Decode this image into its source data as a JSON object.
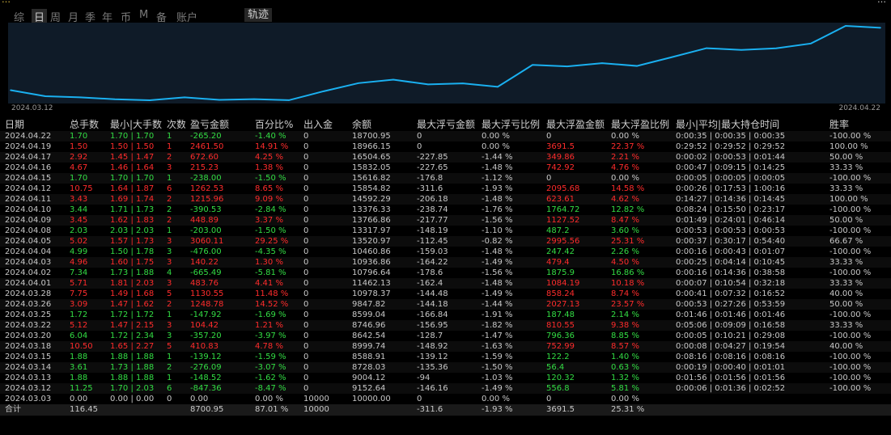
{
  "header": {
    "brand_left": "…",
    "brand_right": "…",
    "tabs": [
      {
        "label": "综",
        "active": false
      },
      {
        "label": "日",
        "active": true
      },
      {
        "label": "周",
        "active": false
      },
      {
        "label": "月",
        "active": false
      },
      {
        "label": "季",
        "active": false
      },
      {
        "label": "年",
        "active": false
      },
      {
        "label": "币",
        "active": false
      },
      {
        "label": "M",
        "active": false
      },
      {
        "label": "备",
        "active": false
      },
      {
        "label": "账户",
        "active": false
      }
    ],
    "trace_label": "轨迹"
  },
  "chart_data": {
    "type": "line",
    "x_start_label": "2024.03.12",
    "x_end_label": "2024.04.22",
    "x": [
      "2024.03.03",
      "2024.03.12",
      "2024.03.13",
      "2024.03.14",
      "2024.03.15",
      "2024.03.18",
      "2024.03.20",
      "2024.03.22",
      "2024.03.25",
      "2024.03.26",
      "2024.03.28",
      "2024.04.01",
      "2024.04.02",
      "2024.04.03",
      "2024.04.04",
      "2024.04.05",
      "2024.04.08",
      "2024.04.09",
      "2024.04.10",
      "2024.04.11",
      "2024.04.12",
      "2024.04.15",
      "2024.04.16",
      "2024.04.17",
      "2024.04.19",
      "2024.04.22"
    ],
    "values": [
      10000,
      9152.64,
      9004.12,
      8728.03,
      8588.91,
      8999.74,
      8642.54,
      8746.96,
      8599.04,
      9847.82,
      10978.37,
      11462.13,
      10796.64,
      10936.86,
      10460.86,
      13520.97,
      13317.97,
      13766.86,
      13376.33,
      14592.29,
      15854.82,
      15616.82,
      15832.05,
      16504.65,
      18966.15,
      18700.95
    ],
    "color": "#1ab0f0",
    "grid": false
  },
  "table": {
    "columns": [
      "日期",
      "总手数",
      "最小|大手数",
      "次数",
      "盈亏金额",
      "百分比%",
      "出入金",
      "余额",
      "最大浮亏金额",
      "最大浮亏比例",
      "最大浮盈金额",
      "最大浮盈比例",
      "最小|平均|最大持仓时间",
      "胜率"
    ],
    "rows": [
      {
        "date": "2024.04.22",
        "lots": "1.70",
        "minmax": "1.70 | 1.70",
        "count": "1",
        "pnl": "-265.20",
        "pct": "-1.40 %",
        "io": "0",
        "bal": "18700.95",
        "mfl": "0",
        "mflp": "0.00 %",
        "mfp": "0",
        "mfpp": "0.00 %",
        "hold": "0:00:35 | 0:00:35 | 0:00:35",
        "win": "-100.00 %",
        "c": "g"
      },
      {
        "date": "2024.04.19",
        "lots": "1.50",
        "minmax": "1.50 | 1.50",
        "count": "1",
        "pnl": "2461.50",
        "pct": "14.91 %",
        "io": "0",
        "bal": "18966.15",
        "mfl": "0",
        "mflp": "0.00 %",
        "mfp": "3691.5",
        "mfpp": "22.37 %",
        "hold": "0:29:52 | 0:29:52 | 0:29:52",
        "win": "100.00 %",
        "c": "r"
      },
      {
        "date": "2024.04.17",
        "lots": "2.92",
        "minmax": "1.45 | 1.47",
        "count": "2",
        "pnl": "672.60",
        "pct": "4.25 %",
        "io": "0",
        "bal": "16504.65",
        "mfl": "-227.85",
        "mflp": "-1.44 %",
        "mfp": "349.86",
        "mfpp": "2.21 %",
        "hold": "0:00:02 | 0:00:53 | 0:01:44",
        "win": "50.00 %",
        "c": "r"
      },
      {
        "date": "2024.04.16",
        "lots": "4.67",
        "minmax": "1.46 | 1.64",
        "count": "3",
        "pnl": "215.23",
        "pct": "1.38 %",
        "io": "0",
        "bal": "15832.05",
        "mfl": "-227.65",
        "mflp": "-1.48 %",
        "mfp": "742.92",
        "mfpp": "4.76 %",
        "hold": "0:00:47 | 0:09:15 | 0:14:25",
        "win": "33.33 %",
        "c": "r"
      },
      {
        "date": "2024.04.15",
        "lots": "1.70",
        "minmax": "1.70 | 1.70",
        "count": "1",
        "pnl": "-238.00",
        "pct": "-1.50 %",
        "io": "0",
        "bal": "15616.82",
        "mfl": "-176.8",
        "mflp": "-1.12 %",
        "mfp": "0",
        "mfpp": "0.00 %",
        "hold": "0:00:05 | 0:00:05 | 0:00:05",
        "win": "-100.00 %",
        "c": "g"
      },
      {
        "date": "2024.04.12",
        "lots": "10.75",
        "minmax": "1.64 | 1.87",
        "count": "6",
        "pnl": "1262.53",
        "pct": "8.65 %",
        "io": "0",
        "bal": "15854.82",
        "mfl": "-311.6",
        "mflp": "-1.93 %",
        "mfp": "2095.68",
        "mfpp": "14.58 %",
        "hold": "0:00:26 | 0:17:53 | 1:00:16",
        "win": "33.33 %",
        "c": "r"
      },
      {
        "date": "2024.04.11",
        "lots": "3.43",
        "minmax": "1.69 | 1.74",
        "count": "2",
        "pnl": "1215.96",
        "pct": "9.09 %",
        "io": "0",
        "bal": "14592.29",
        "mfl": "-206.18",
        "mflp": "-1.48 %",
        "mfp": "623.61",
        "mfpp": "4.62 %",
        "hold": "0:14:27 | 0:14:36 | 0:14:45",
        "win": "100.00 %",
        "c": "r"
      },
      {
        "date": "2024.04.10",
        "lots": "3.44",
        "minmax": "1.71 | 1.73",
        "count": "2",
        "pnl": "-390.53",
        "pct": "-2.84 %",
        "io": "0",
        "bal": "13376.33",
        "mfl": "-238.74",
        "mflp": "-1.76 %",
        "mfp": "1764.72",
        "mfpp": "12.82 %",
        "hold": "0:08:24 | 0:15:50 | 0:23:17",
        "win": "-100.00 %",
        "c": "g"
      },
      {
        "date": "2024.04.09",
        "lots": "3.45",
        "minmax": "1.62 | 1.83",
        "count": "2",
        "pnl": "448.89",
        "pct": "3.37 %",
        "io": "0",
        "bal": "13766.86",
        "mfl": "-217.77",
        "mflp": "-1.56 %",
        "mfp": "1127.52",
        "mfpp": "8.47 %",
        "hold": "0:01:49 | 0:24:01 | 0:46:14",
        "win": "50.00 %",
        "c": "r"
      },
      {
        "date": "2024.04.08",
        "lots": "2.03",
        "minmax": "2.03 | 2.03",
        "count": "1",
        "pnl": "-203.00",
        "pct": "-1.50 %",
        "io": "0",
        "bal": "13317.97",
        "mfl": "-148.19",
        "mflp": "-1.10 %",
        "mfp": "487.2",
        "mfpp": "3.60 %",
        "hold": "0:00:53 | 0:00:53 | 0:00:53",
        "win": "-100.00 %",
        "c": "g"
      },
      {
        "date": "2024.04.05",
        "lots": "5.02",
        "minmax": "1.57 | 1.73",
        "count": "3",
        "pnl": "3060.11",
        "pct": "29.25 %",
        "io": "0",
        "bal": "13520.97",
        "mfl": "-112.45",
        "mflp": "-0.82 %",
        "mfp": "2995.56",
        "mfpp": "25.31 %",
        "hold": "0:00:37 | 0:30:17 | 0:54:40",
        "win": "66.67 %",
        "c": "r"
      },
      {
        "date": "2024.04.04",
        "lots": "4.99",
        "minmax": "1.50 | 1.78",
        "count": "3",
        "pnl": "-476.00",
        "pct": "-4.35 %",
        "io": "0",
        "bal": "10460.86",
        "mfl": "-159.03",
        "mflp": "-1.48 %",
        "mfp": "247.42",
        "mfpp": "2.26 %",
        "hold": "0:00:16 | 0:00:43 | 0:01:07",
        "win": "-100.00 %",
        "c": "g"
      },
      {
        "date": "2024.04.03",
        "lots": "4.96",
        "minmax": "1.60 | 1.75",
        "count": "3",
        "pnl": "140.22",
        "pct": "1.30 %",
        "io": "0",
        "bal": "10936.86",
        "mfl": "-164.22",
        "mflp": "-1.49 %",
        "mfp": "479.4",
        "mfpp": "4.50 %",
        "hold": "0:00:25 | 0:04:14 | 0:10:45",
        "win": "33.33 %",
        "c": "r"
      },
      {
        "date": "2024.04.02",
        "lots": "7.34",
        "minmax": "1.73 | 1.88",
        "count": "4",
        "pnl": "-665.49",
        "pct": "-5.81 %",
        "io": "0",
        "bal": "10796.64",
        "mfl": "-178.6",
        "mflp": "-1.56 %",
        "mfp": "1875.9",
        "mfpp": "16.86 %",
        "hold": "0:00:16 | 0:14:36 | 0:38:58",
        "win": "-100.00 %",
        "c": "g"
      },
      {
        "date": "2024.04.01",
        "lots": "5.71",
        "minmax": "1.81 | 2.03",
        "count": "3",
        "pnl": "483.76",
        "pct": "4.41 %",
        "io": "0",
        "bal": "11462.13",
        "mfl": "-162.4",
        "mflp": "-1.48 %",
        "mfp": "1084.19",
        "mfpp": "10.18 %",
        "hold": "0:00:07 | 0:10:54 | 0:32:18",
        "win": "33.33 %",
        "c": "r"
      },
      {
        "date": "2024.03.28",
        "lots": "7.75",
        "minmax": "1.49 | 1.68",
        "count": "5",
        "pnl": "1130.55",
        "pct": "11.48 %",
        "io": "0",
        "bal": "10978.37",
        "mfl": "-144.48",
        "mflp": "-1.49 %",
        "mfp": "858.24",
        "mfpp": "8.74 %",
        "hold": "0:00:41 | 0:07:32 | 0:16:52",
        "win": "40.00 %",
        "c": "r"
      },
      {
        "date": "2024.03.26",
        "lots": "3.09",
        "minmax": "1.47 | 1.62",
        "count": "2",
        "pnl": "1248.78",
        "pct": "14.52 %",
        "io": "0",
        "bal": "9847.82",
        "mfl": "-144.18",
        "mflp": "-1.44 %",
        "mfp": "2027.13",
        "mfpp": "23.57 %",
        "hold": "0:00:53 | 0:27:26 | 0:53:59",
        "win": "50.00 %",
        "c": "r"
      },
      {
        "date": "2024.03.25",
        "lots": "1.72",
        "minmax": "1.72 | 1.72",
        "count": "1",
        "pnl": "-147.92",
        "pct": "-1.69 %",
        "io": "0",
        "bal": "8599.04",
        "mfl": "-166.84",
        "mflp": "-1.91 %",
        "mfp": "187.48",
        "mfpp": "2.14 %",
        "hold": "0:01:46 | 0:01:46 | 0:01:46",
        "win": "-100.00 %",
        "c": "g"
      },
      {
        "date": "2024.03.22",
        "lots": "5.12",
        "minmax": "1.47 | 2.15",
        "count": "3",
        "pnl": "104.42",
        "pct": "1.21 %",
        "io": "0",
        "bal": "8746.96",
        "mfl": "-156.95",
        "mflp": "-1.82 %",
        "mfp": "810.55",
        "mfpp": "9.38 %",
        "hold": "0:05:06 | 0:09:09 | 0:16:58",
        "win": "33.33 %",
        "c": "r"
      },
      {
        "date": "2024.03.20",
        "lots": "6.04",
        "minmax": "1.72 | 2.34",
        "count": "3",
        "pnl": "-357.20",
        "pct": "-3.97 %",
        "io": "0",
        "bal": "8642.54",
        "mfl": "-128.7",
        "mflp": "-1.47 %",
        "mfp": "796.36",
        "mfpp": "8.85 %",
        "hold": "0:00:05 | 0:10:21 | 0:29:08",
        "win": "-100.00 %",
        "c": "g"
      },
      {
        "date": "2024.03.18",
        "lots": "10.50",
        "minmax": "1.65 | 2.27",
        "count": "5",
        "pnl": "410.83",
        "pct": "4.78 %",
        "io": "0",
        "bal": "8999.74",
        "mfl": "-148.92",
        "mflp": "-1.63 %",
        "mfp": "752.99",
        "mfpp": "8.57 %",
        "hold": "0:00:08 | 0:04:27 | 0:19:54",
        "win": "40.00 %",
        "c": "r"
      },
      {
        "date": "2024.03.15",
        "lots": "1.88",
        "minmax": "1.88 | 1.88",
        "count": "1",
        "pnl": "-139.12",
        "pct": "-1.59 %",
        "io": "0",
        "bal": "8588.91",
        "mfl": "-139.12",
        "mflp": "-1.59 %",
        "mfp": "122.2",
        "mfpp": "1.40 %",
        "hold": "0:08:16 | 0:08:16 | 0:08:16",
        "win": "-100.00 %",
        "c": "g"
      },
      {
        "date": "2024.03.14",
        "lots": "3.61",
        "minmax": "1.73 | 1.88",
        "count": "2",
        "pnl": "-276.09",
        "pct": "-3.07 %",
        "io": "0",
        "bal": "8728.03",
        "mfl": "-135.36",
        "mflp": "-1.50 %",
        "mfp": "56.4",
        "mfpp": "0.63 %",
        "hold": "0:00:19 | 0:00:40 | 0:01:01",
        "win": "-100.00 %",
        "c": "g"
      },
      {
        "date": "2024.03.13",
        "lots": "1.88",
        "minmax": "1.88 | 1.88",
        "count": "1",
        "pnl": "-148.52",
        "pct": "-1.62 %",
        "io": "0",
        "bal": "9004.12",
        "mfl": "-94",
        "mflp": "-1.03 %",
        "mfp": "120.32",
        "mfpp": "1.32 %",
        "hold": "0:01:56 | 0:01:56 | 0:01:56",
        "win": "-100.00 %",
        "c": "g"
      },
      {
        "date": "2024.03.12",
        "lots": "11.25",
        "minmax": "1.70 | 2.03",
        "count": "6",
        "pnl": "-847.36",
        "pct": "-8.47 %",
        "io": "0",
        "bal": "9152.64",
        "mfl": "-146.16",
        "mflp": "-1.49 %",
        "mfp": "556.8",
        "mfpp": "5.81 %",
        "hold": "0:00:06 | 0:01:36 | 0:02:52",
        "win": "-100.00 %",
        "c": "g"
      },
      {
        "date": "2024.03.03",
        "lots": "0.00",
        "minmax": "0.00 | 0.00",
        "count": "0",
        "pnl": "0.00",
        "pct": "0.00 %",
        "io": "10000",
        "bal": "10000.00",
        "mfl": "0",
        "mflp": "0.00 %",
        "mfp": "0",
        "mfpp": "0.00 %",
        "hold": "",
        "win": "",
        "c": "w"
      }
    ],
    "total": {
      "label": "合计",
      "lots": "116.45",
      "minmax": "",
      "count": "",
      "pnl": "8700.95",
      "pct": "87.01 %",
      "io": "10000",
      "bal": "",
      "mfl": "-311.6",
      "mflp": "-1.93 %",
      "mfp": "3691.5",
      "mfpp": "25.31 %",
      "hold": "",
      "win": ""
    }
  }
}
